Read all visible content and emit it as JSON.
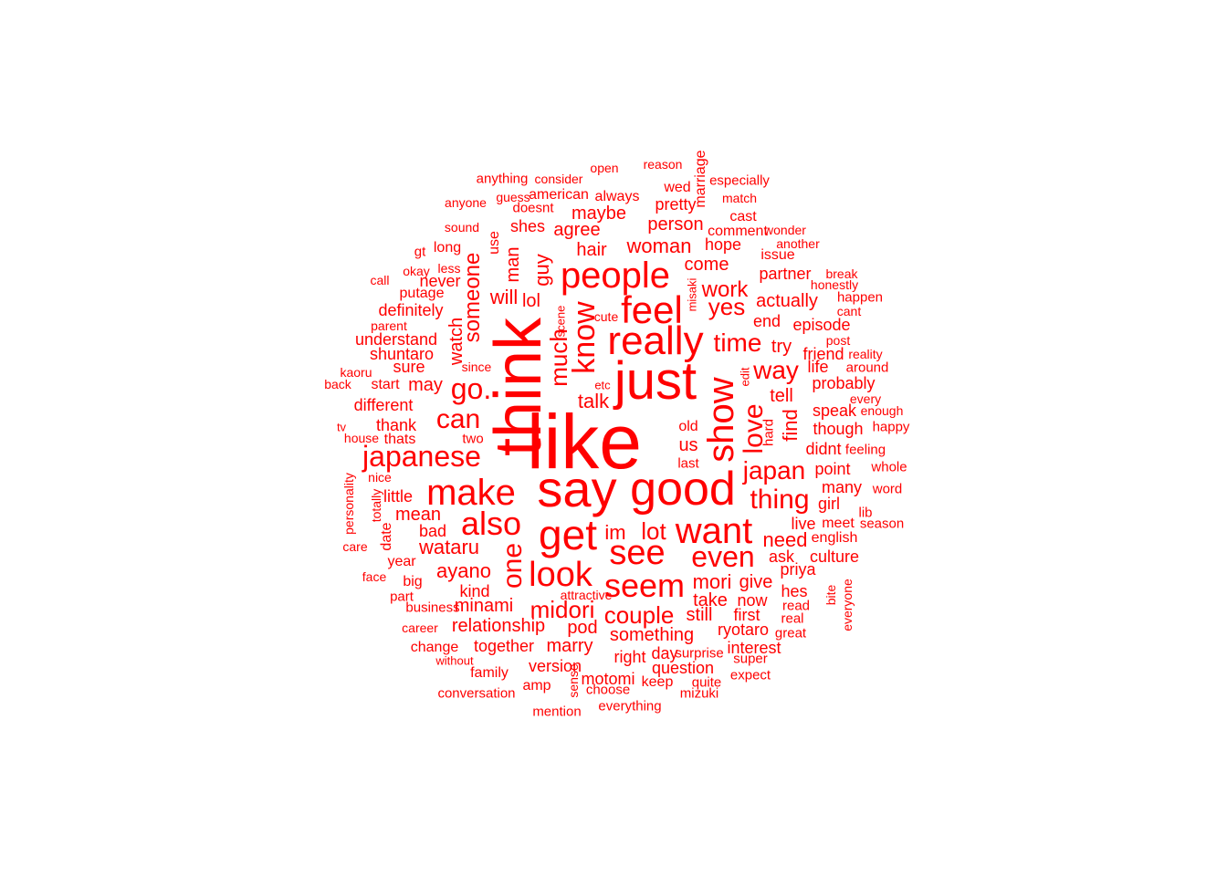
{
  "color": "#ff0000",
  "words": [
    {
      "text": "like",
      "weight": 84
    },
    {
      "text": "think",
      "weight": 72,
      "vertical": true
    },
    {
      "text": "just",
      "weight": 58
    },
    {
      "text": "say",
      "weight": 56
    },
    {
      "text": "good",
      "weight": 52
    },
    {
      "text": "get",
      "weight": 46
    },
    {
      "text": "really",
      "weight": 44
    },
    {
      "text": "feel",
      "weight": 42
    },
    {
      "text": "people",
      "weight": 40
    },
    {
      "text": "make",
      "weight": 40
    },
    {
      "text": "want",
      "weight": 40
    },
    {
      "text": "show",
      "weight": 40,
      "vertical": true
    },
    {
      "text": "look",
      "weight": 38
    },
    {
      "text": "see",
      "weight": 38
    },
    {
      "text": "seem",
      "weight": 36
    },
    {
      "text": "also",
      "weight": 36
    },
    {
      "text": "know",
      "weight": 34,
      "vertical": true
    },
    {
      "text": "japanese",
      "weight": 32
    },
    {
      "text": "even",
      "weight": 32
    },
    {
      "text": "go.",
      "weight": 32
    },
    {
      "text": "one",
      "weight": 30,
      "vertical": true
    },
    {
      "text": "love",
      "weight": 30,
      "vertical": true
    },
    {
      "text": "can",
      "weight": 30
    },
    {
      "text": "thing",
      "weight": 30
    },
    {
      "text": "time",
      "weight": 28
    },
    {
      "text": "way",
      "weight": 28
    },
    {
      "text": "japan",
      "weight": 28
    },
    {
      "text": "lot",
      "weight": 26
    },
    {
      "text": "couple",
      "weight": 26
    },
    {
      "text": "midori",
      "weight": 26
    },
    {
      "text": "yes",
      "weight": 26
    },
    {
      "text": "much",
      "weight": 26,
      "vertical": true
    },
    {
      "text": "someone",
      "weight": 24,
      "vertical": true
    },
    {
      "text": "work",
      "weight": 24
    },
    {
      "text": "mori",
      "weight": 22
    },
    {
      "text": "woman",
      "weight": 22
    },
    {
      "text": "wataru",
      "weight": 22
    },
    {
      "text": "ayano",
      "weight": 22
    },
    {
      "text": "find",
      "weight": 22,
      "vertical": true
    },
    {
      "text": "need",
      "weight": 22
    },
    {
      "text": "im",
      "weight": 22
    },
    {
      "text": "will",
      "weight": 22
    },
    {
      "text": "talk",
      "weight": 22
    },
    {
      "text": "guy",
      "weight": 22,
      "vertical": true
    },
    {
      "text": "minami",
      "weight": 20
    },
    {
      "text": "relationship",
      "weight": 20
    },
    {
      "text": "something",
      "weight": 20
    },
    {
      "text": "marry",
      "weight": 20
    },
    {
      "text": "pod",
      "weight": 20
    },
    {
      "text": "take",
      "weight": 20
    },
    {
      "text": "give",
      "weight": 20
    },
    {
      "text": "still",
      "weight": 20
    },
    {
      "text": "hair",
      "weight": 20
    },
    {
      "text": "maybe",
      "weight": 20
    },
    {
      "text": "come",
      "weight": 20
    },
    {
      "text": "actually",
      "weight": 20
    },
    {
      "text": "watch",
      "weight": 20,
      "vertical": true
    },
    {
      "text": "man",
      "weight": 20,
      "vertical": true
    },
    {
      "text": "may",
      "weight": 20
    },
    {
      "text": "agree",
      "weight": 20
    },
    {
      "text": "person",
      "weight": 20
    },
    {
      "text": "mean",
      "weight": 20
    },
    {
      "text": "us",
      "weight": 20
    },
    {
      "text": "lol",
      "weight": 20
    },
    {
      "text": "try",
      "weight": 20
    },
    {
      "text": "tell",
      "weight": 20
    },
    {
      "text": "ask",
      "weight": 18
    },
    {
      "text": "hope",
      "weight": 18
    },
    {
      "text": "end",
      "weight": 18
    },
    {
      "text": "understand",
      "weight": 18
    },
    {
      "text": "shuntaro",
      "weight": 18
    },
    {
      "text": "thank",
      "weight": 18
    },
    {
      "text": "sure",
      "weight": 18
    },
    {
      "text": "different",
      "weight": 18
    },
    {
      "text": "point",
      "weight": 18
    },
    {
      "text": "didnt",
      "weight": 18
    },
    {
      "text": "speak",
      "weight": 18
    },
    {
      "text": "though",
      "weight": 18
    },
    {
      "text": "probably",
      "weight": 18
    },
    {
      "text": "episode",
      "weight": 18
    },
    {
      "text": "friend",
      "weight": 18
    },
    {
      "text": "partner",
      "weight": 18
    },
    {
      "text": "kind",
      "weight": 18
    },
    {
      "text": "together",
      "weight": 18
    },
    {
      "text": "version",
      "weight": 18
    },
    {
      "text": "question",
      "weight": 18
    },
    {
      "text": "motomi",
      "weight": 18
    },
    {
      "text": "right",
      "weight": 18
    },
    {
      "text": "day",
      "weight": 18
    },
    {
      "text": "interest",
      "weight": 18
    },
    {
      "text": "ryotaro",
      "weight": 18
    },
    {
      "text": "first",
      "weight": 18
    },
    {
      "text": "now",
      "weight": 18
    },
    {
      "text": "hes",
      "weight": 18
    },
    {
      "text": "priya",
      "weight": 18
    },
    {
      "text": "culture",
      "weight": 18
    },
    {
      "text": "live",
      "weight": 18
    },
    {
      "text": "meet",
      "weight": 16
    },
    {
      "text": "many",
      "weight": 18
    },
    {
      "text": "girl",
      "weight": 18
    },
    {
      "text": "little",
      "weight": 18
    },
    {
      "text": "bad",
      "weight": 18
    },
    {
      "text": "big",
      "weight": 16
    },
    {
      "text": "year",
      "weight": 16
    },
    {
      "text": "never",
      "weight": 18
    },
    {
      "text": "definitely",
      "weight": 18
    },
    {
      "text": "putage",
      "weight": 16
    },
    {
      "text": "start",
      "weight": 16
    },
    {
      "text": "thats",
      "weight": 16
    },
    {
      "text": "old",
      "weight": 16
    },
    {
      "text": "last",
      "weight": 15
    },
    {
      "text": "life",
      "weight": 18
    },
    {
      "text": "english",
      "weight": 16
    },
    {
      "text": "long",
      "weight": 16
    },
    {
      "text": "shes",
      "weight": 18
    },
    {
      "text": "pretty",
      "weight": 18
    },
    {
      "text": "always",
      "weight": 16
    },
    {
      "text": "american",
      "weight": 16
    },
    {
      "text": "wed",
      "weight": 16
    },
    {
      "text": "cast",
      "weight": 16
    },
    {
      "text": "comment",
      "weight": 16
    },
    {
      "text": "issue",
      "weight": 16
    },
    {
      "text": "keep",
      "weight": 16
    },
    {
      "text": "amp",
      "weight": 16
    },
    {
      "text": "family",
      "weight": 16
    },
    {
      "text": "change",
      "weight": 16
    },
    {
      "text": "business",
      "weight": 15
    },
    {
      "text": "part",
      "weight": 15
    },
    {
      "text": "mention",
      "weight": 15
    },
    {
      "text": "conversation",
      "weight": 15
    },
    {
      "text": "everything",
      "weight": 15
    },
    {
      "text": "mizuki",
      "weight": 15
    },
    {
      "text": "expect",
      "weight": 15
    },
    {
      "text": "super",
      "weight": 15
    },
    {
      "text": "surprise",
      "weight": 15
    },
    {
      "text": "quite",
      "weight": 15
    },
    {
      "text": "choose",
      "weight": 15
    },
    {
      "text": "real",
      "weight": 15
    },
    {
      "text": "great",
      "weight": 15
    },
    {
      "text": "read",
      "weight": 15
    },
    {
      "text": "lib",
      "weight": 15
    },
    {
      "text": "word",
      "weight": 15
    },
    {
      "text": "season",
      "weight": 15
    },
    {
      "text": "whole",
      "weight": 15
    },
    {
      "text": "feeling",
      "weight": 15
    },
    {
      "text": "happy",
      "weight": 15
    },
    {
      "text": "enough",
      "weight": 14
    },
    {
      "text": "every",
      "weight": 14
    },
    {
      "text": "around",
      "weight": 15
    },
    {
      "text": "reality",
      "weight": 14
    },
    {
      "text": "post",
      "weight": 14
    },
    {
      "text": "cant",
      "weight": 14
    },
    {
      "text": "happen",
      "weight": 15
    },
    {
      "text": "honestly",
      "weight": 14
    },
    {
      "text": "break",
      "weight": 14
    },
    {
      "text": "another",
      "weight": 14
    },
    {
      "text": "wonder",
      "weight": 14
    },
    {
      "text": "match",
      "weight": 14
    },
    {
      "text": "especially",
      "weight": 15
    },
    {
      "text": "reason",
      "weight": 14
    },
    {
      "text": "open",
      "weight": 14
    },
    {
      "text": "consider",
      "weight": 14
    },
    {
      "text": "anything",
      "weight": 15
    },
    {
      "text": "anyone",
      "weight": 14
    },
    {
      "text": "guess",
      "weight": 14
    },
    {
      "text": "sound",
      "weight": 14
    },
    {
      "text": "doesnt",
      "weight": 15
    },
    {
      "text": "gt",
      "weight": 15
    },
    {
      "text": "okay",
      "weight": 14
    },
    {
      "text": "less",
      "weight": 14
    },
    {
      "text": "call",
      "weight": 14
    },
    {
      "text": "parent",
      "weight": 14
    },
    {
      "text": "kaoru",
      "weight": 14
    },
    {
      "text": "back",
      "weight": 14
    },
    {
      "text": "house",
      "weight": 14
    },
    {
      "text": "two",
      "weight": 15
    },
    {
      "text": "since",
      "weight": 14
    },
    {
      "text": "nice",
      "weight": 14
    },
    {
      "text": "care",
      "weight": 14
    },
    {
      "text": "face",
      "weight": 14
    },
    {
      "text": "career",
      "weight": 14
    },
    {
      "text": "without",
      "weight": 13
    },
    {
      "text": "attractive",
      "weight": 14
    },
    {
      "text": "cute",
      "weight": 14
    },
    {
      "text": "etc",
      "weight": 13
    },
    {
      "text": "tv",
      "weight": 13
    },
    {
      "text": "personality",
      "weight": 14,
      "vertical": true
    },
    {
      "text": "totally",
      "weight": 14,
      "vertical": true
    },
    {
      "text": "date",
      "weight": 16,
      "vertical": true
    },
    {
      "text": "use",
      "weight": 16,
      "vertical": true
    },
    {
      "text": "marriage",
      "weight": 16,
      "vertical": true
    },
    {
      "text": "misaki",
      "weight": 13,
      "vertical": true
    },
    {
      "text": "scene",
      "weight": 13,
      "vertical": true
    },
    {
      "text": "edit",
      "weight": 13,
      "vertical": true
    },
    {
      "text": "hard",
      "weight": 15,
      "vertical": true
    },
    {
      "text": "sense",
      "weight": 14,
      "vertical": true
    },
    {
      "text": "bite",
      "weight": 14,
      "vertical": true
    },
    {
      "text": "everyone",
      "weight": 14,
      "vertical": true
    },
    {
      "text": "help",
      "weight": 13,
      "vertical": true
    }
  ]
}
